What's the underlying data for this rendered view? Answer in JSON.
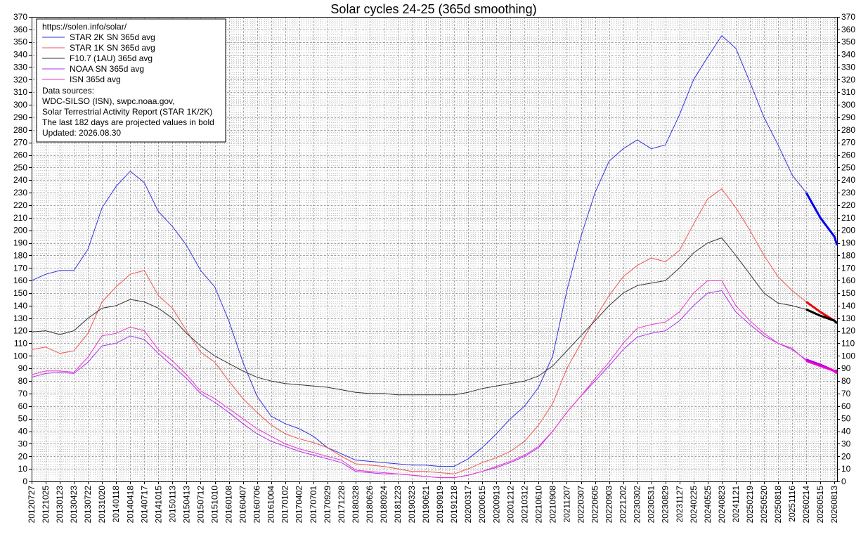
{
  "chart_data": {
    "type": "line",
    "title": "Solar cycles 24-25 (365d smoothing)",
    "xlabel": "",
    "ylabel": "",
    "ylim": [
      0,
      370
    ],
    "y_ticks": [
      0,
      10,
      20,
      30,
      40,
      50,
      60,
      70,
      80,
      90,
      100,
      110,
      120,
      130,
      140,
      150,
      160,
      170,
      180,
      190,
      200,
      210,
      220,
      230,
      240,
      250,
      260,
      270,
      280,
      290,
      300,
      310,
      320,
      330,
      340,
      350,
      360,
      370
    ],
    "x_range": [
      "20120727",
      "20260830"
    ],
    "x_tick_labels": [
      "20120727",
      "20121025",
      "20130123",
      "20130423",
      "20130722",
      "20131020",
      "20140118",
      "20140418",
      "20140717",
      "20141015",
      "20150113",
      "20150413",
      "20150712",
      "20151010",
      "20160108",
      "20160407",
      "20160706",
      "20161004",
      "20170102",
      "20170402",
      "20170701",
      "20170929",
      "20171228",
      "20180328",
      "20180626",
      "20180924",
      "20181223",
      "20190323",
      "20190621",
      "20190919",
      "20191218",
      "20200317",
      "20200615",
      "20200913",
      "20201212",
      "20210312",
      "20210610",
      "20210908",
      "20211207",
      "20220307",
      "20220605",
      "20220903",
      "20221202",
      "20230302",
      "20230531",
      "20230829",
      "20231127",
      "20240225",
      "20240525",
      "20240823",
      "20241121",
      "20250219",
      "20250520",
      "20250818",
      "20251116",
      "20260214",
      "20260515",
      "20260813"
    ],
    "grid": true,
    "legend_position": "top-left",
    "legend": {
      "header": "https://solen.info/solar/",
      "notes": [
        "Data sources:",
        "WDC-SILSO (ISN), swpc.noaa.gov,",
        "Solar Terrestrial Activity Report (STAR 1K/2K)",
        "The last 182 days are projected values in bold",
        "Updated: 2026.08.30"
      ]
    },
    "series": [
      {
        "name": "STAR 2K SN 365d avg",
        "color": "#3333dd",
        "bold_color": "#0000ee",
        "x": [
          "20120727",
          "20121025",
          "20130123",
          "20130423",
          "20130722",
          "20131020",
          "20140118",
          "20140418",
          "20140717",
          "20141015",
          "20150113",
          "20150413",
          "20150712",
          "20151010",
          "20160108",
          "20160407",
          "20160706",
          "20161004",
          "20170102",
          "20170402",
          "20170701",
          "20170929",
          "20171228",
          "20180328",
          "20180626",
          "20180924",
          "20181223",
          "20190323",
          "20190621",
          "20190919",
          "20191218",
          "20200317",
          "20200615",
          "20200913",
          "20201212",
          "20210312",
          "20210610",
          "20210908",
          "20211207",
          "20220307",
          "20220605",
          "20220903",
          "20221202",
          "20230302",
          "20230531",
          "20230829",
          "20231127",
          "20240225",
          "20240525",
          "20240823",
          "20241121",
          "20250219",
          "20250520",
          "20250818",
          "20251116",
          "20260214",
          "20260515",
          "20260813",
          "20260830"
        ],
        "values": [
          160,
          165,
          168,
          168,
          185,
          218,
          235,
          247,
          238,
          215,
          203,
          188,
          168,
          155,
          128,
          95,
          68,
          52,
          46,
          42,
          36,
          27,
          22,
          17,
          16,
          15,
          14,
          13,
          13,
          12,
          12,
          18,
          27,
          38,
          50,
          60,
          75,
          100,
          152,
          195,
          230,
          255,
          265,
          272,
          265,
          268,
          292,
          320,
          338,
          355,
          345,
          318,
          290,
          268,
          244,
          230,
          210,
          195,
          188
        ],
        "bold_from": "20260301"
      },
      {
        "name": "STAR 1K SN 365d avg",
        "color": "#ee5555",
        "bold_color": "#ee0000",
        "x": [
          "20120727",
          "20121025",
          "20130123",
          "20130423",
          "20130722",
          "20131020",
          "20140118",
          "20140418",
          "20140717",
          "20141015",
          "20150113",
          "20150413",
          "20150712",
          "20151010",
          "20160108",
          "20160407",
          "20160706",
          "20161004",
          "20170102",
          "20170402",
          "20170701",
          "20170929",
          "20171228",
          "20180328",
          "20180626",
          "20180924",
          "20181223",
          "20190323",
          "20190621",
          "20190919",
          "20191218",
          "20200317",
          "20200615",
          "20200913",
          "20201212",
          "20210312",
          "20210610",
          "20210908",
          "20211207",
          "20220307",
          "20220605",
          "20220903",
          "20221202",
          "20230302",
          "20230531",
          "20230829",
          "20231127",
          "20240225",
          "20240525",
          "20240823",
          "20241121",
          "20250219",
          "20250520",
          "20250818",
          "20251116",
          "20260214",
          "20260515",
          "20260813",
          "20260830"
        ],
        "values": [
          105,
          107,
          102,
          104,
          118,
          143,
          155,
          165,
          168,
          148,
          138,
          120,
          103,
          95,
          80,
          66,
          55,
          45,
          38,
          34,
          31,
          27,
          20,
          14,
          13,
          12,
          10,
          8,
          8,
          7,
          6,
          10,
          15,
          19,
          24,
          32,
          45,
          62,
          90,
          110,
          130,
          148,
          163,
          172,
          178,
          175,
          184,
          205,
          225,
          233,
          218,
          200,
          180,
          163,
          152,
          143,
          135,
          128,
          126
        ],
        "bold_from": "20260301"
      },
      {
        "name": "F10.7 (1AU) 365d avg",
        "color": "#333333",
        "bold_color": "#000000",
        "x": [
          "20120727",
          "20121025",
          "20130123",
          "20130423",
          "20130722",
          "20131020",
          "20140118",
          "20140418",
          "20140717",
          "20141015",
          "20150113",
          "20150413",
          "20150712",
          "20151010",
          "20160108",
          "20160407",
          "20160706",
          "20161004",
          "20170102",
          "20170402",
          "20170701",
          "20170929",
          "20171228",
          "20180328",
          "20180626",
          "20180924",
          "20181223",
          "20190323",
          "20190621",
          "20190919",
          "20191218",
          "20200317",
          "20200615",
          "20200913",
          "20201212",
          "20210312",
          "20210610",
          "20210908",
          "20211207",
          "20220307",
          "20220605",
          "20220903",
          "20221202",
          "20230302",
          "20230531",
          "20230829",
          "20231127",
          "20240225",
          "20240525",
          "20240823",
          "20241121",
          "20250219",
          "20250520",
          "20250818",
          "20251116",
          "20260214",
          "20260515",
          "20260813",
          "20260830"
        ],
        "values": [
          119,
          120,
          117,
          120,
          130,
          138,
          140,
          145,
          143,
          138,
          130,
          118,
          108,
          100,
          94,
          88,
          83,
          80,
          78,
          77,
          76,
          75,
          73,
          71,
          70,
          70,
          69,
          69,
          69,
          69,
          69,
          71,
          74,
          76,
          78,
          80,
          84,
          92,
          104,
          116,
          128,
          140,
          150,
          156,
          158,
          160,
          170,
          182,
          190,
          194,
          180,
          165,
          150,
          142,
          140,
          137,
          132,
          128,
          126
        ],
        "bold_from": "20260301"
      },
      {
        "name": "NOAA SN 365d avg",
        "color": "#aa33ee",
        "bold_color": "#9900ee",
        "x": [
          "20120727",
          "20121025",
          "20130123",
          "20130423",
          "20130722",
          "20131020",
          "20140118",
          "20140418",
          "20140717",
          "20141015",
          "20150113",
          "20150413",
          "20150712",
          "20151010",
          "20160108",
          "20160407",
          "20160706",
          "20161004",
          "20170102",
          "20170402",
          "20170701",
          "20170929",
          "20171228",
          "20180328",
          "20180626",
          "20180924",
          "20181223",
          "20190323",
          "20190621",
          "20190919",
          "20191218",
          "20200317",
          "20200615",
          "20200913",
          "20201212",
          "20210312",
          "20210610",
          "20210908",
          "20211207",
          "20220307",
          "20220605",
          "20220903",
          "20221202",
          "20230302",
          "20230531",
          "20230829",
          "20231127",
          "20240225",
          "20240525",
          "20240823",
          "20241121",
          "20250219",
          "20250520",
          "20250818",
          "20251116",
          "20260214",
          "20260515",
          "20260813",
          "20260830"
        ],
        "values": [
          83,
          86,
          87,
          86,
          95,
          108,
          110,
          116,
          113,
          102,
          92,
          82,
          70,
          63,
          55,
          46,
          38,
          32,
          28,
          24,
          21,
          18,
          15,
          8,
          7,
          6,
          6,
          5,
          4,
          3,
          3,
          5,
          8,
          11,
          15,
          20,
          27,
          40,
          55,
          68,
          80,
          92,
          105,
          115,
          118,
          120,
          128,
          140,
          150,
          152,
          135,
          125,
          116,
          110,
          105,
          97,
          93,
          88,
          88
        ],
        "bold_from": "20260301"
      },
      {
        "name": "ISN 365d avg",
        "color": "#ee33cc",
        "bold_color": "#ee00cc",
        "x": [
          "20120727",
          "20121025",
          "20130123",
          "20130423",
          "20130722",
          "20131020",
          "20140118",
          "20140418",
          "20140717",
          "20141015",
          "20150113",
          "20150413",
          "20150712",
          "20151010",
          "20160108",
          "20160407",
          "20160706",
          "20161004",
          "20170102",
          "20170402",
          "20170701",
          "20170929",
          "20171228",
          "20180328",
          "20180626",
          "20180924",
          "20181223",
          "20190323",
          "20190621",
          "20190919",
          "20191218",
          "20200317",
          "20200615",
          "20200913",
          "20201212",
          "20210312",
          "20210610",
          "20210908",
          "20211207",
          "20220307",
          "20220605",
          "20220903",
          "20221202",
          "20230302",
          "20230531",
          "20230829",
          "20231127",
          "20240225",
          "20240525",
          "20240823",
          "20241121",
          "20250219",
          "20250520",
          "20250818",
          "20251116",
          "20260214",
          "20260515",
          "20260813",
          "20260830"
        ],
        "values": [
          85,
          88,
          88,
          87,
          99,
          116,
          118,
          123,
          120,
          105,
          96,
          85,
          72,
          66,
          58,
          50,
          42,
          36,
          30,
          26,
          23,
          20,
          17,
          9,
          8,
          7,
          6,
          5,
          4,
          3,
          3,
          5,
          8,
          12,
          16,
          21,
          28,
          40,
          55,
          68,
          82,
          95,
          110,
          122,
          125,
          127,
          135,
          150,
          160,
          160,
          140,
          128,
          118,
          110,
          106,
          96,
          92,
          88,
          86
        ],
        "bold_from": "20260301"
      }
    ]
  }
}
